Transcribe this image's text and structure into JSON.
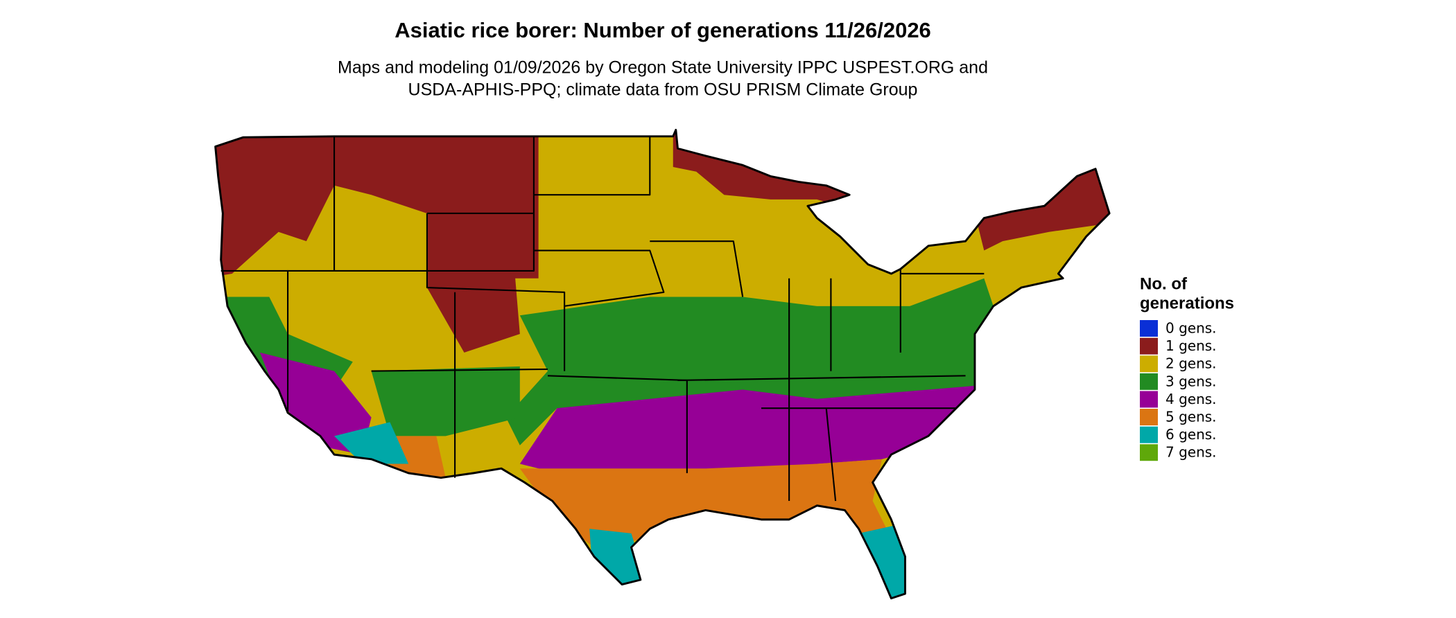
{
  "title": "Asiatic rice borer: Number of generations 11/26/2026",
  "subtitle": [
    "Maps and modeling 01/09/2026 by Oregon State University IPPC USPEST.ORG and",
    "USDA-APHIS-PPQ; climate data from OSU PRISM Climate Group"
  ],
  "legend": {
    "title": [
      "No. of",
      "generations"
    ],
    "items": [
      {
        "label": "0 gens.",
        "color": "#0a2fd6"
      },
      {
        "label": "1 gens.",
        "color": "#8b1c1c"
      },
      {
        "label": "2 gens.",
        "color": "#ccad00"
      },
      {
        "label": "3 gens.",
        "color": "#228b22"
      },
      {
        "label": "4 gens.",
        "color": "#960096"
      },
      {
        "label": "5 gens.",
        "color": "#db7512"
      },
      {
        "label": "6 gens.",
        "color": "#00a8a8"
      },
      {
        "label": "7 gens.",
        "color": "#5fa80a"
      }
    ]
  }
}
